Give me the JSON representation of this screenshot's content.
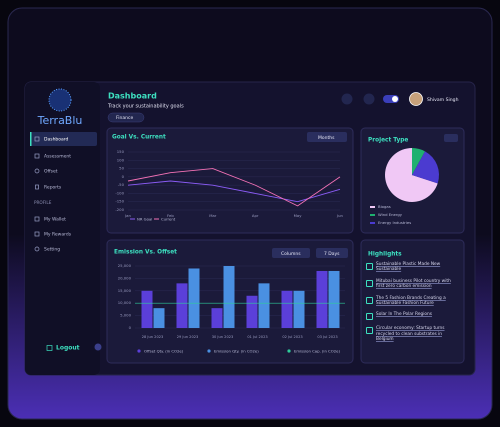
{
  "sidebar": {
    "logo": "TerraBlu",
    "menu": [
      "Dashboard",
      "Assessment",
      "Offset",
      "Reports"
    ],
    "profile_heading": "PROFILE",
    "profile_menu": [
      "My Wallet",
      "My Rewards",
      "Setting"
    ],
    "logout": "Logout"
  },
  "header": {
    "title": "Dashboard",
    "subtitle": "Track your sustainability goals",
    "filter": "Finance",
    "user": "Shivam Singh"
  },
  "chart_data": [
    {
      "type": "line",
      "title": "Goal Vs. Current",
      "control": "Months",
      "categories": [
        "Jan",
        "Feb",
        "Mar",
        "Apr",
        "May",
        "Jun"
      ],
      "series": [
        {
          "name": "NR Goal",
          "color": "#8b5cf6",
          "values": [
            -50,
            -25,
            -50,
            -100,
            -150,
            -75
          ]
        },
        {
          "name": "Current",
          "color": "#f472b6",
          "values": [
            -25,
            25,
            50,
            -50,
            -175,
            0
          ]
        }
      ],
      "ylim": [
        -200,
        150
      ],
      "yticks": [
        150,
        100,
        50,
        0,
        -50,
        -100,
        -150,
        -200
      ],
      "grid": true
    },
    {
      "type": "pie",
      "title": "Project Type",
      "categories": [
        "Biogas",
        "Wind Energy",
        "Energy Industries"
      ],
      "values": [
        70,
        8,
        22
      ],
      "colors": [
        "#f0c8f5",
        "#1fb070",
        "#4b3bd0"
      ]
    },
    {
      "type": "bar",
      "title": "Emission Vs. Offset",
      "controls": [
        "Columns",
        "7 Days"
      ],
      "categories": [
        "28 Jun 2023",
        "29 Jun 2023",
        "30 Jun 2023",
        "01 Jul 2023",
        "02 Jul 2023",
        "03 Jul 2023"
      ],
      "series": [
        {
          "name": "Offset Qty. (in CO2e)",
          "color": "#5b3fd9",
          "values": [
            15000,
            18000,
            8000,
            13000,
            15000,
            23000
          ]
        },
        {
          "name": "Emission Qty. (in CO2e)",
          "color": "#4a90e2",
          "values": [
            8000,
            24000,
            25000,
            18000,
            15000,
            23000
          ]
        }
      ],
      "cap": {
        "name": "Emission Cap. (in CO2e)",
        "color": "#2ecc9a",
        "value": 10000
      },
      "ylim": [
        0,
        25000
      ],
      "yticks": [
        {
          "value": 25000,
          "label": "25,000"
        },
        {
          "value": 20000,
          "label": "20,000"
        },
        {
          "value": 15000,
          "label": "15,000"
        },
        {
          "value": 10000,
          "label": "10,000"
        },
        {
          "value": 5000,
          "label": "5,000"
        },
        0
      ],
      "grid": true
    }
  ],
  "highlights": {
    "title": "Highlights",
    "items": [
      "Sustainable Plastic Made New Sustainable",
      "Mitubai business Pilot country with first zero carbon emission",
      "The 5 Fashion Brands Creating a Sustainable Fashion Future",
      "Solar In The Polar Regions",
      "Circular economy: Startup turns recycled to clean substrates in Belgium"
    ]
  }
}
